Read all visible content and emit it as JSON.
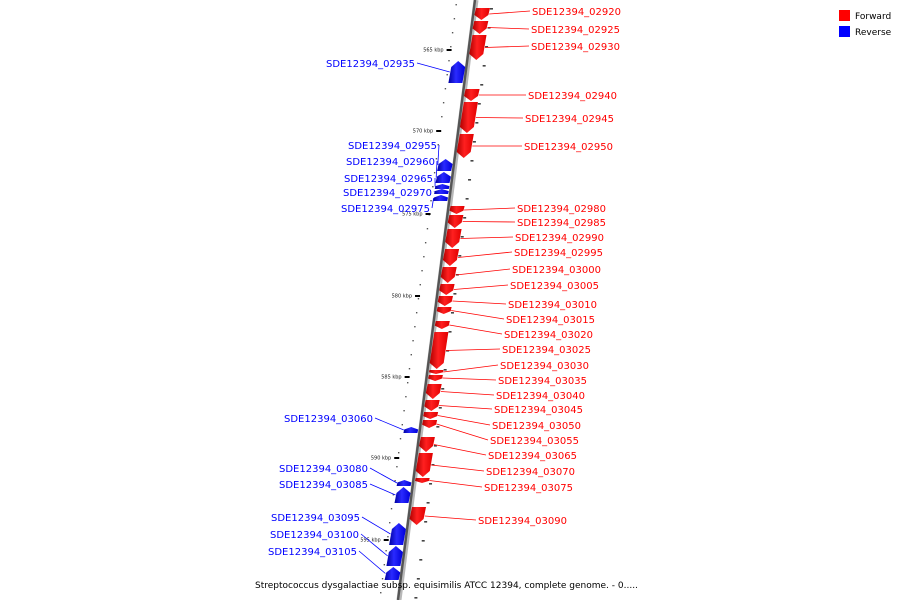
{
  "caption": "Streptococcus dysgalactiae subsp. equisimilis ATCC 12394, complete genome. - 0.....",
  "legend": [
    {
      "label": "Forward",
      "color": "#ff0000"
    },
    {
      "label": "Reverse",
      "color": "#0000ff"
    }
  ],
  "axis_ticks": [
    {
      "label": "565 kbp"
    },
    {
      "label": "570 kbp"
    },
    {
      "label": "575 kbp"
    },
    {
      "label": "580 kbp"
    },
    {
      "label": "585 kbp"
    },
    {
      "label": "590 kbp"
    },
    {
      "label": "595 kbp"
    }
  ],
  "genes": [
    {
      "id": "SDE12394_02920",
      "strand": "forward"
    },
    {
      "id": "SDE12394_02925",
      "strand": "forward"
    },
    {
      "id": "SDE12394_02930",
      "strand": "forward"
    },
    {
      "id": "SDE12394_02935",
      "strand": "reverse"
    },
    {
      "id": "SDE12394_02940",
      "strand": "forward"
    },
    {
      "id": "SDE12394_02945",
      "strand": "forward"
    },
    {
      "id": "SDE12394_02950",
      "strand": "forward"
    },
    {
      "id": "SDE12394_02955",
      "strand": "reverse"
    },
    {
      "id": "SDE12394_02960",
      "strand": "reverse"
    },
    {
      "id": "SDE12394_02965",
      "strand": "reverse"
    },
    {
      "id": "SDE12394_02970",
      "strand": "reverse"
    },
    {
      "id": "SDE12394_02975",
      "strand": "reverse"
    },
    {
      "id": "SDE12394_02980",
      "strand": "forward"
    },
    {
      "id": "SDE12394_02985",
      "strand": "forward"
    },
    {
      "id": "SDE12394_02990",
      "strand": "forward"
    },
    {
      "id": "SDE12394_02995",
      "strand": "forward"
    },
    {
      "id": "SDE12394_03000",
      "strand": "forward"
    },
    {
      "id": "SDE12394_03005",
      "strand": "forward"
    },
    {
      "id": "SDE12394_03010",
      "strand": "forward"
    },
    {
      "id": "SDE12394_03015",
      "strand": "forward"
    },
    {
      "id": "SDE12394_03020",
      "strand": "forward"
    },
    {
      "id": "SDE12394_03025",
      "strand": "forward"
    },
    {
      "id": "SDE12394_03030",
      "strand": "forward"
    },
    {
      "id": "SDE12394_03035",
      "strand": "forward"
    },
    {
      "id": "SDE12394_03040",
      "strand": "forward"
    },
    {
      "id": "SDE12394_03045",
      "strand": "forward"
    },
    {
      "id": "SDE12394_03050",
      "strand": "forward"
    },
    {
      "id": "SDE12394_03055",
      "strand": "forward"
    },
    {
      "id": "SDE12394_03060",
      "strand": "reverse"
    },
    {
      "id": "SDE12394_03065",
      "strand": "forward"
    },
    {
      "id": "SDE12394_03070",
      "strand": "forward"
    },
    {
      "id": "SDE12394_03075",
      "strand": "forward"
    },
    {
      "id": "SDE12394_03080",
      "strand": "reverse"
    },
    {
      "id": "SDE12394_03085",
      "strand": "reverse"
    },
    {
      "id": "SDE12394_03090",
      "strand": "forward"
    },
    {
      "id": "SDE12394_03095",
      "strand": "reverse"
    },
    {
      "id": "SDE12394_03100",
      "strand": "reverse"
    },
    {
      "id": "SDE12394_03105",
      "strand": "reverse"
    }
  ]
}
